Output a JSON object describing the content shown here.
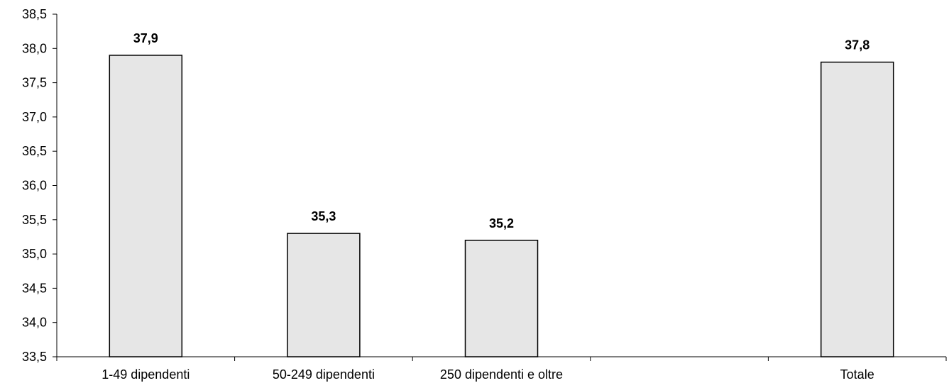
{
  "chart_data": {
    "type": "bar",
    "categories": [
      "1-49 dipendenti",
      "50-249 dipendenti",
      "250 dipendenti e oltre",
      "",
      "Totale"
    ],
    "values": [
      37.9,
      35.3,
      35.2,
      null,
      37.8
    ],
    "data_labels": [
      "37,9",
      "35,3",
      "35,2",
      "",
      "37,8"
    ],
    "ylim": [
      33.5,
      38.5
    ],
    "yticks": [
      33.5,
      34.0,
      34.5,
      35.0,
      35.5,
      36.0,
      36.5,
      37.0,
      37.5,
      38.0,
      38.5
    ],
    "ytick_labels": [
      "33,5",
      "34,0",
      "34,5",
      "35,0",
      "35,5",
      "36,0",
      "36,5",
      "37,0",
      "37,5",
      "38,0",
      "38,5"
    ],
    "grid": false,
    "bar_color": "#e6e6e6",
    "bar_edge_color": "#000000"
  }
}
